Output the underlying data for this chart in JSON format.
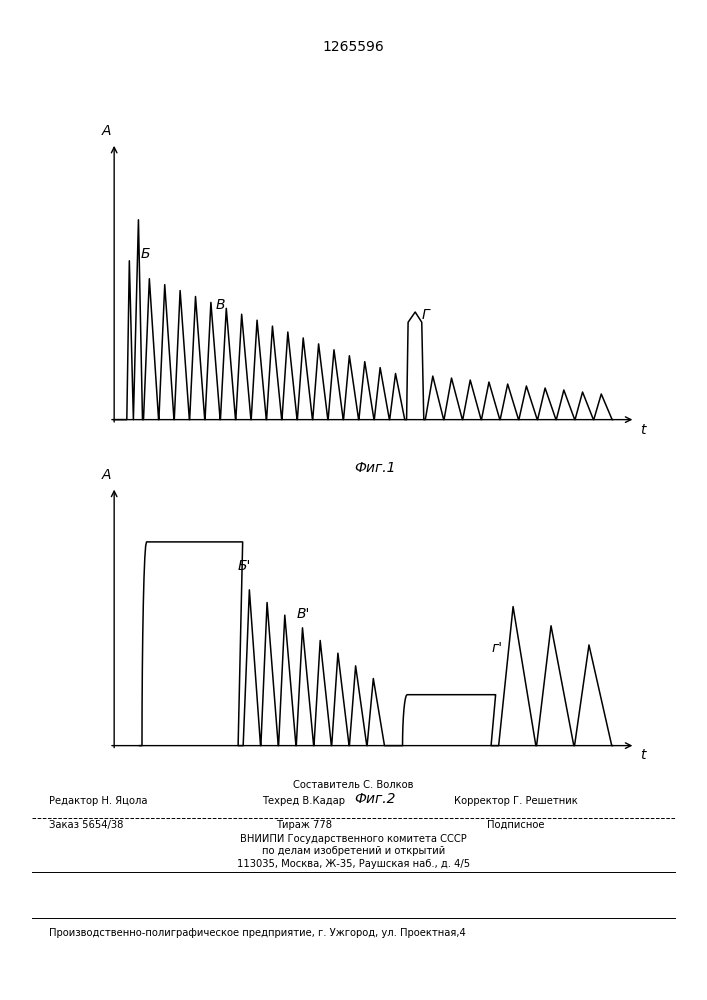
{
  "title": "1265596",
  "fig1_label": "Фиг.1",
  "fig2_label": "Фиг.2",
  "label_A": "А",
  "label_t": "t",
  "fig1_B": "Б",
  "fig1_V": "В",
  "fig1_G": "Г",
  "fig2_B": "Б'",
  "fig2_V": "В'",
  "fig2_G": "г'",
  "footer_line1": "Составитель С. Волков",
  "footer_line2_left": "Редактор Н. Яцола",
  "footer_line2_mid": "Техред В.Кадар",
  "footer_line2_right": "Корректор Г. Решетник",
  "footer_line3_left": "Заказ 5654/38",
  "footer_line3_mid": "Тираж 778",
  "footer_line3_right": "Подписное",
  "footer_line4": "ВНИИПИ Государственного комитета СССР",
  "footer_line5": "по делам изобретений и открытий",
  "footer_line6": "113035, Москва, Ж-35, Раушская наб., д. 4/5",
  "footer_line7": "Производственно-полиграфическое предприятие, г. Ужгород, ул. Проектная,4",
  "bg_color": "#ffffff",
  "line_color": "#000000"
}
